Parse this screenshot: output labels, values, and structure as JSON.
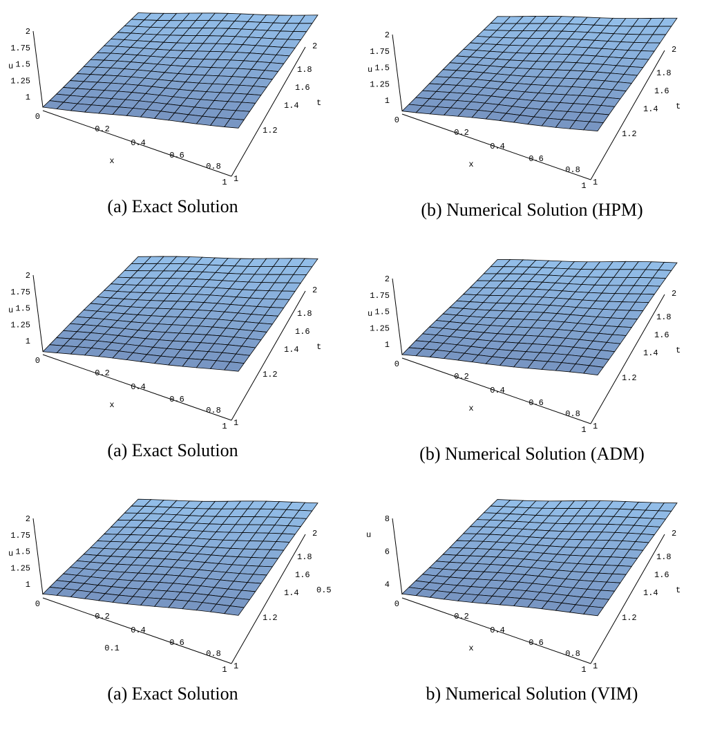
{
  "panels": [
    {
      "caption": "(a) Exact Solution",
      "u_label": "u",
      "x_label": "x",
      "t_label": "t",
      "u_ticks": [
        "2",
        "1.75",
        "1.5",
        "1.25",
        "1",
        "0"
      ],
      "x_ticks": [
        "0.2",
        "0.4",
        "0.6",
        "0.8",
        "1"
      ],
      "t_ticks": [
        "2",
        "1.8",
        "1.6",
        "1.4",
        "1.2",
        "1"
      ]
    },
    {
      "caption": "(b) Numerical Solution (HPM)",
      "u_label": "u",
      "x_label": "x",
      "t_label": "t",
      "u_ticks": [
        "2",
        "1.75",
        "1.5",
        "1.25",
        "1",
        "0"
      ],
      "x_ticks": [
        "0.2",
        "0.4",
        "0.6",
        "0.8",
        "1"
      ],
      "t_ticks": [
        "2",
        "1.8",
        "1.6",
        "1.4",
        "1.2",
        "1"
      ]
    },
    {
      "caption": "(a) Exact Solution",
      "u_label": "u",
      "x_label": "x",
      "t_label": "t",
      "u_ticks": [
        "2",
        "1.75",
        "1.5",
        "1.25",
        "1",
        "0"
      ],
      "x_ticks": [
        "0.2",
        "0.4",
        "0.6",
        "0.8",
        "1"
      ],
      "t_ticks": [
        "2",
        "1.8",
        "1.6",
        "1.4",
        "1.2",
        "1"
      ]
    },
    {
      "caption": "(b) Numerical Solution (ADM)",
      "u_label": "u",
      "x_label": "x",
      "t_label": "t",
      "u_ticks": [
        "2",
        "1.75",
        "1.5",
        "1.25",
        "1",
        "0"
      ],
      "x_ticks": [
        "0.2",
        "0.4",
        "0.6",
        "0.8",
        "1"
      ],
      "t_ticks": [
        "2",
        "1.8",
        "1.6",
        "1.4",
        "1.2",
        "1"
      ]
    },
    {
      "caption": "(a) Exact Solution",
      "u_label": "u",
      "x_label": "0.1",
      "t_label": "0.5",
      "u_ticks": [
        "2",
        "1.75",
        "1.5",
        "1.25",
        "1",
        "0"
      ],
      "x_ticks": [
        "0.2",
        "0.4",
        "0.6",
        "0.8",
        "1"
      ],
      "t_ticks": [
        "2",
        "1.8",
        "1.6",
        "1.4",
        "1.2",
        "1"
      ]
    },
    {
      "caption": "b) Numerical Solution (VIM)",
      "u_label": "u",
      "x_label": "x",
      "t_label": "t",
      "u_ticks": [
        "8",
        "6",
        "4",
        "0"
      ],
      "x_ticks": [
        "0.2",
        "0.4",
        "0.6",
        "0.8",
        "1"
      ],
      "t_ticks": [
        "2",
        "1.8",
        "1.6",
        "1.4",
        "1.2",
        "1"
      ]
    }
  ]
}
